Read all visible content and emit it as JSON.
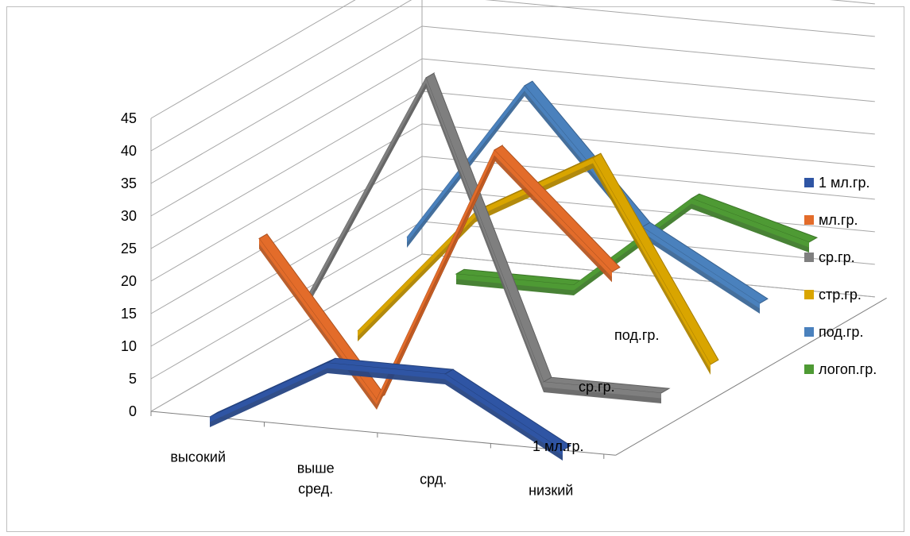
{
  "chart_data": {
    "type": "line",
    "subtype": "3d-line",
    "categories": [
      "высокий",
      "выше сред.",
      "срд.",
      "низкий"
    ],
    "category_labels": [
      [
        "высокий"
      ],
      [
        "выше",
        "сред."
      ],
      [
        "срд."
      ],
      [
        "низкий"
      ]
    ],
    "depth_axis_labels": [
      "1 мл.гр.",
      "ср.гр.",
      "под.гр."
    ],
    "ylim": [
      0,
      45
    ],
    "yticks": [
      "0",
      "5",
      "10",
      "15",
      "20",
      "25",
      "30",
      "35",
      "40",
      "45"
    ],
    "grid": true,
    "legend_position": "right",
    "series": [
      {
        "name": "1 мл.гр.",
        "color": "#2f55a4",
        "values": [
          0,
          10,
          10,
          0
        ]
      },
      {
        "name": "мл.гр.",
        "color": "#e36c2a",
        "values": [
          23,
          0,
          40,
          23
        ]
      },
      {
        "name": "ср.гр.",
        "color": "#7f7f7f",
        "values": [
          10,
          45,
          0,
          0
        ]
      },
      {
        "name": "стр.гр.",
        "color": "#d9a500",
        "values": [
          0,
          20,
          30,
          0
        ]
      },
      {
        "name": "под.гр.",
        "color": "#4a81bd",
        "values": [
          10,
          35,
          15,
          5
        ]
      },
      {
        "name": "логоп.гр.",
        "color": "#4e9a34",
        "values": [
          0,
          0,
          15,
          10
        ]
      }
    ]
  }
}
